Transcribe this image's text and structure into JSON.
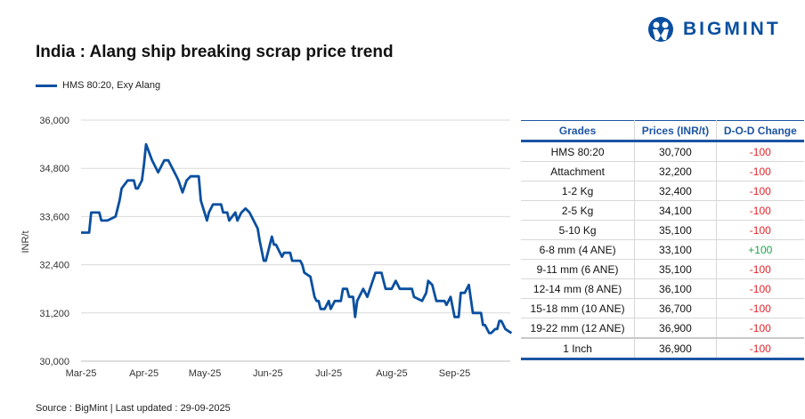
{
  "title": "India : Alang ship breaking scrap price trend",
  "source": "Source : BigMint | Last updated : 29-09-2025",
  "logo": {
    "text": "BIGMINT",
    "color": "#0a4fa0"
  },
  "colors": {
    "series": "#0a4fa0",
    "negative": "#e0262b",
    "positive": "#1aa64a",
    "header": "#1c55a3"
  },
  "chart_data": {
    "type": "line",
    "title": "India : Alang ship breaking scrap price trend",
    "ylabel": "INR/t",
    "xlabel": "",
    "ylim": [
      30000,
      36000
    ],
    "yticks": [
      "30,000",
      "31,200",
      "32,400",
      "33,600",
      "34,800",
      "36,000"
    ],
    "ytick_values": [
      30000,
      31200,
      32400,
      33600,
      34800,
      36000
    ],
    "xticks": [
      "Mar-25",
      "Apr-25",
      "May-25",
      "Jun-25",
      "Jul-25",
      "Aug-25",
      "Sep-25"
    ],
    "xtick_dates": [
      "2025-03-01",
      "2025-04-01",
      "2025-05-01",
      "2025-06-01",
      "2025-07-01",
      "2025-08-01",
      "2025-09-01"
    ],
    "grid": "horizontal",
    "legend": "top-left",
    "series": [
      {
        "name": "HMS 80:20, Exy Alang",
        "color": "#0a4fa0",
        "points": [
          [
            "2025-03-01",
            33200
          ],
          [
            "2025-03-05",
            33200
          ],
          [
            "2025-03-06",
            33700
          ],
          [
            "2025-03-10",
            33700
          ],
          [
            "2025-03-11",
            33500
          ],
          [
            "2025-03-14",
            33500
          ],
          [
            "2025-03-18",
            33600
          ],
          [
            "2025-03-20",
            34000
          ],
          [
            "2025-03-21",
            34300
          ],
          [
            "2025-03-24",
            34500
          ],
          [
            "2025-03-27",
            34500
          ],
          [
            "2025-03-28",
            34300
          ],
          [
            "2025-03-29",
            34300
          ],
          [
            "2025-03-31",
            34500
          ],
          [
            "2025-04-01",
            34900
          ],
          [
            "2025-04-02",
            35400
          ],
          [
            "2025-04-05",
            35000
          ],
          [
            "2025-04-08",
            34700
          ],
          [
            "2025-04-09",
            34800
          ],
          [
            "2025-04-11",
            35000
          ],
          [
            "2025-04-13",
            35000
          ],
          [
            "2025-04-15",
            34800
          ],
          [
            "2025-04-17",
            34600
          ],
          [
            "2025-04-18",
            34500
          ],
          [
            "2025-04-20",
            34200
          ],
          [
            "2025-04-22",
            34500
          ],
          [
            "2025-04-24",
            34600
          ],
          [
            "2025-04-28",
            34600
          ],
          [
            "2025-04-29",
            34000
          ],
          [
            "2025-05-02",
            33500
          ],
          [
            "2025-05-03",
            33700
          ],
          [
            "2025-05-05",
            33900
          ],
          [
            "2025-05-09",
            33900
          ],
          [
            "2025-05-10",
            33700
          ],
          [
            "2025-05-12",
            33700
          ],
          [
            "2025-05-13",
            33500
          ],
          [
            "2025-05-16",
            33700
          ],
          [
            "2025-05-17",
            33500
          ],
          [
            "2025-05-19",
            33700
          ],
          [
            "2025-05-21",
            33800
          ],
          [
            "2025-05-23",
            33700
          ],
          [
            "2025-05-25",
            33500
          ],
          [
            "2025-05-27",
            33300
          ],
          [
            "2025-05-28",
            33000
          ],
          [
            "2025-05-30",
            32500
          ],
          [
            "2025-05-31",
            32500
          ],
          [
            "2025-06-03",
            33100
          ],
          [
            "2025-06-04",
            32900
          ],
          [
            "2025-06-05",
            32900
          ],
          [
            "2025-06-08",
            32600
          ],
          [
            "2025-06-09",
            32700
          ],
          [
            "2025-06-12",
            32700
          ],
          [
            "2025-06-13",
            32500
          ],
          [
            "2025-06-17",
            32500
          ],
          [
            "2025-06-18",
            32400
          ],
          [
            "2025-06-19",
            32200
          ],
          [
            "2025-06-22",
            32100
          ],
          [
            "2025-06-24",
            31600
          ],
          [
            "2025-06-25",
            31500
          ],
          [
            "2025-06-26",
            31500
          ],
          [
            "2025-06-27",
            31300
          ],
          [
            "2025-06-29",
            31300
          ],
          [
            "2025-07-01",
            31500
          ],
          [
            "2025-07-02",
            31300
          ],
          [
            "2025-07-04",
            31500
          ],
          [
            "2025-07-07",
            31500
          ],
          [
            "2025-07-08",
            31800
          ],
          [
            "2025-07-10",
            31800
          ],
          [
            "2025-07-11",
            31600
          ],
          [
            "2025-07-13",
            31600
          ],
          [
            "2025-07-14",
            31100
          ],
          [
            "2025-07-15",
            31500
          ],
          [
            "2025-07-18",
            31800
          ],
          [
            "2025-07-20",
            31600
          ],
          [
            "2025-07-24",
            32200
          ],
          [
            "2025-07-27",
            32200
          ],
          [
            "2025-07-29",
            31800
          ],
          [
            "2025-08-01",
            31800
          ],
          [
            "2025-08-03",
            32000
          ],
          [
            "2025-08-05",
            31800
          ],
          [
            "2025-08-11",
            31800
          ],
          [
            "2025-08-12",
            31600
          ],
          [
            "2025-08-14",
            31550
          ],
          [
            "2025-08-16",
            31500
          ],
          [
            "2025-08-18",
            31700
          ],
          [
            "2025-08-19",
            32000
          ],
          [
            "2025-08-21",
            31900
          ],
          [
            "2025-08-23",
            31500
          ],
          [
            "2025-08-27",
            31500
          ],
          [
            "2025-08-28",
            31400
          ],
          [
            "2025-08-30",
            31600
          ],
          [
            "2025-09-01",
            31100
          ],
          [
            "2025-09-03",
            31100
          ],
          [
            "2025-09-04",
            31700
          ],
          [
            "2025-09-06",
            31700
          ],
          [
            "2025-09-08",
            31900
          ],
          [
            "2025-09-10",
            31200
          ],
          [
            "2025-09-14",
            31200
          ],
          [
            "2025-09-15",
            30900
          ],
          [
            "2025-09-16",
            30900
          ],
          [
            "2025-09-18",
            30700
          ],
          [
            "2025-09-19",
            30700
          ],
          [
            "2025-09-21",
            30800
          ],
          [
            "2025-09-22",
            30800
          ],
          [
            "2025-09-23",
            31000
          ],
          [
            "2025-09-24",
            31000
          ],
          [
            "2025-09-26",
            30800
          ],
          [
            "2025-09-29",
            30700
          ]
        ]
      }
    ]
  },
  "table": {
    "headers": [
      "Grades",
      "Prices (INR/t)",
      "D-O-D Change"
    ],
    "rows": [
      {
        "grade": "HMS 80:20",
        "price": "30,700",
        "change": "-100"
      },
      {
        "grade": "Attachment",
        "price": "32,200",
        "change": "-100"
      },
      {
        "grade": "1-2 Kg",
        "price": "32,400",
        "change": "-100"
      },
      {
        "grade": "2-5 Kg",
        "price": "34,100",
        "change": "-100"
      },
      {
        "grade": "5-10 Kg",
        "price": "35,100",
        "change": "-100"
      },
      {
        "grade": "6-8 mm (4 ANE)",
        "price": "33,100",
        "change": "+100"
      },
      {
        "grade": "9-11 mm (6 ANE)",
        "price": "35,100",
        "change": "-100"
      },
      {
        "grade": "12-14 mm (8 ANE)",
        "price": "36,100",
        "change": "-100"
      },
      {
        "grade": "15-18 mm (10 ANE)",
        "price": "36,700",
        "change": "-100"
      },
      {
        "grade": "19-22 mm (12 ANE)",
        "price": "36,900",
        "change": "-100"
      },
      {
        "grade": "1 Inch",
        "price": "36,900",
        "change": "-100"
      }
    ]
  }
}
